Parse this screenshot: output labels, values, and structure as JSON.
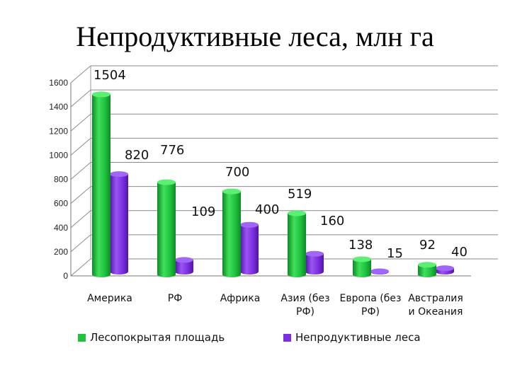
{
  "title": "Непродуктивные леса, млн га",
  "colors": {
    "series1": "#1fc23f",
    "series1_dark": "#0e8a25",
    "series2": "#7b2fe0",
    "series2_dark": "#5015a8",
    "grid": "#8a8a8a"
  },
  "chart_data": {
    "type": "bar",
    "title": "Непродуктивные леса, млн га",
    "categories": [
      [
        "Америка"
      ],
      [
        "РФ"
      ],
      [
        "Африка"
      ],
      [
        "Азия (без",
        "РФ)"
      ],
      [
        "Европа (без",
        "РФ)"
      ],
      [
        "Австралия",
        "и Океания"
      ]
    ],
    "series": [
      {
        "name": "Лесопокрытая площадь",
        "values": [
          1504,
          776,
          700,
          519,
          138,
          92
        ],
        "labels": [
          "1504",
          "776",
          "700",
          "519",
          "138",
          "92"
        ]
      },
      {
        "name": "Непродуктивные леса",
        "values": [
          820,
          109,
          400,
          160,
          15,
          40
        ],
        "labels": [
          "820",
          "109",
          "400",
          "160",
          "15",
          "40"
        ]
      }
    ],
    "yticks": [
      "0",
      "200",
      "400",
      "600",
      "800",
      "1000",
      "1200",
      "1400",
      "1600"
    ],
    "ylim": [
      0,
      1600
    ],
    "grid": true,
    "legend_position": "bottom"
  },
  "legend": {
    "item1": "Лесопокрытая площадь",
    "item2": "Непродуктивные леса"
  }
}
